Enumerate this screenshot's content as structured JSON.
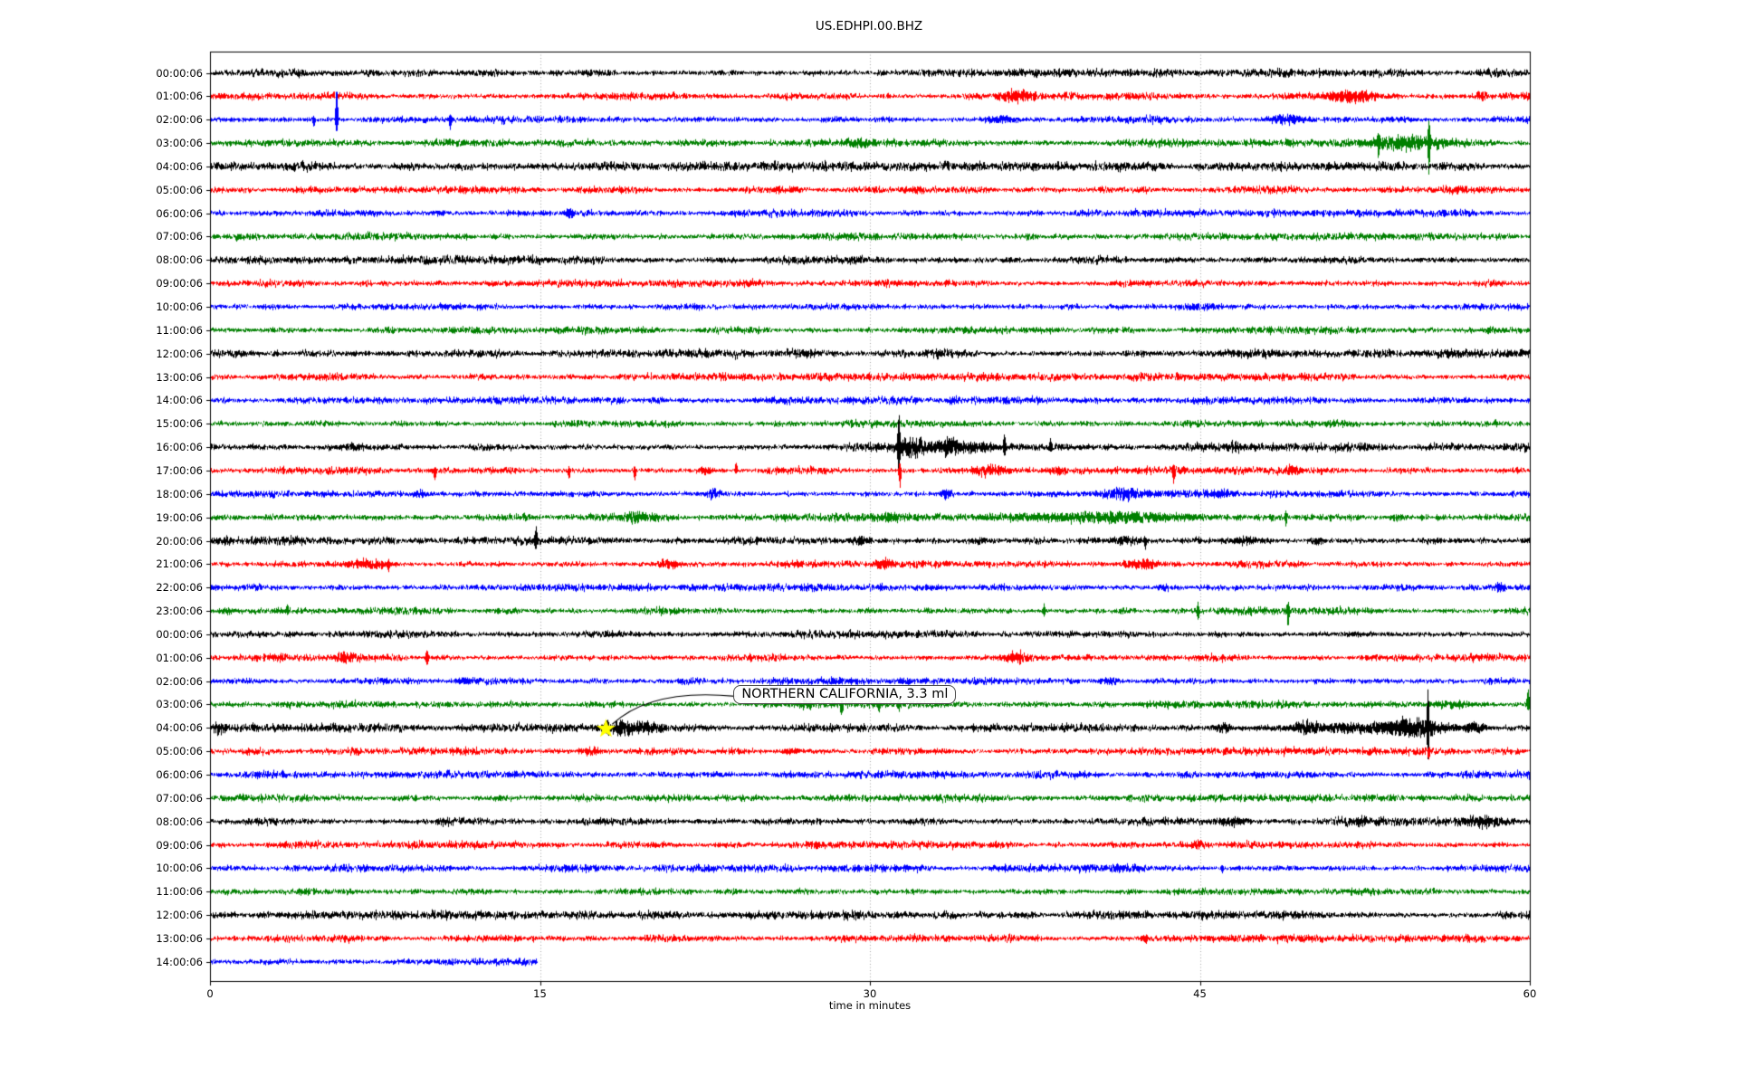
{
  "title": "US.EDHPI.00.BHZ",
  "xlabel": "time in minutes",
  "x_ticks": [
    0,
    15,
    30,
    45,
    60
  ],
  "grid_minutes": [
    15,
    30,
    45
  ],
  "annotation": {
    "text": "NORTHERN CALIFORNIA, 3.3 ml",
    "star_row": 28,
    "star_minute": 18.0,
    "box_left_minute": 23.8,
    "box_row": 27,
    "star_color": "#ffff00"
  },
  "chart_data": {
    "type": "line",
    "subtype": "seismogram-dayplot",
    "station": "US.EDHPI.00.BHZ",
    "x_range_minutes": [
      0,
      60
    ],
    "grid": "vertical-dotted",
    "noise_seed": 1337,
    "palette": [
      "#000000",
      "#ff0000",
      "#0000ff",
      "#008000"
    ],
    "rows": [
      {
        "label": "00:00:06",
        "color": "#000000",
        "amp": 3.1,
        "len": 60,
        "ev": []
      },
      {
        "label": "01:00:06",
        "color": "#ff0000",
        "amp": 2.9,
        "len": 60,
        "ev": [
          [
            "b",
            36.7,
            6,
            0.9
          ],
          [
            "b",
            51.9,
            7,
            1.6
          ],
          [
            "b",
            57.8,
            4,
            0.4
          ]
        ]
      },
      {
        "label": "02:00:06",
        "color": "#0000ff",
        "amp": 2.9,
        "len": 60,
        "ev": [
          [
            "s",
            4.7,
            2,
            8
          ],
          [
            "s",
            5.74,
            38,
            14
          ],
          [
            "s",
            10.9,
            3,
            9
          ],
          [
            "b",
            36.0,
            4,
            0.8
          ],
          [
            "b",
            48.8,
            6,
            1.0
          ]
        ]
      },
      {
        "label": "03:00:06",
        "color": "#008000",
        "amp": 2.9,
        "len": 60,
        "ev": [
          [
            "b",
            29.5,
            4,
            0.8
          ],
          [
            "s",
            53.1,
            10,
            12
          ],
          [
            "b",
            54.3,
            7,
            2.2
          ],
          [
            "s",
            55.4,
            26,
            30
          ]
        ]
      },
      {
        "label": "04:00:06",
        "color": "#000000",
        "amp": 3.4,
        "len": 60,
        "ev": []
      },
      {
        "label": "05:00:06",
        "color": "#ff0000",
        "amp": 2.9,
        "len": 60,
        "ev": [
          [
            "b",
            56.8,
            5,
            0.3
          ]
        ]
      },
      {
        "label": "06:00:06",
        "color": "#0000ff",
        "amp": 2.9,
        "len": 60,
        "ev": [
          [
            "b",
            16.3,
            5,
            0.3
          ]
        ]
      },
      {
        "label": "07:00:06",
        "color": "#008000",
        "amp": 2.9,
        "len": 60,
        "ev": []
      },
      {
        "label": "08:00:06",
        "color": "#000000",
        "amp": 3.3,
        "len": 60,
        "ev": []
      },
      {
        "label": "09:00:06",
        "color": "#ff0000",
        "amp": 2.9,
        "len": 60,
        "ev": []
      },
      {
        "label": "10:00:06",
        "color": "#0000ff",
        "amp": 2.9,
        "len": 60,
        "ev": []
      },
      {
        "label": "11:00:06",
        "color": "#008000",
        "amp": 2.9,
        "len": 60,
        "ev": []
      },
      {
        "label": "12:00:06",
        "color": "#000000",
        "amp": 3.4,
        "len": 60,
        "ev": []
      },
      {
        "label": "13:00:06",
        "color": "#ff0000",
        "amp": 2.9,
        "len": 60,
        "ev": []
      },
      {
        "label": "14:00:06",
        "color": "#0000ff",
        "amp": 2.9,
        "len": 60,
        "ev": []
      },
      {
        "label": "15:00:06",
        "color": "#008000",
        "amp": 2.9,
        "len": 60,
        "ev": []
      },
      {
        "label": "16:00:06",
        "color": "#000000",
        "amp": 3.2,
        "len": 60,
        "ev": [
          [
            "s",
            31.3,
            36,
            30
          ],
          [
            "b",
            31.9,
            10,
            1.1
          ],
          [
            "b",
            33.6,
            8,
            0.7
          ],
          [
            "b",
            34.8,
            5,
            1.5
          ],
          [
            "s",
            36.1,
            12,
            8
          ],
          [
            "s",
            38.2,
            8,
            4
          ],
          [
            "b",
            46.6,
            5,
            0.4
          ]
        ]
      },
      {
        "label": "17:00:06",
        "color": "#ff0000",
        "amp": 2.9,
        "len": 60,
        "ev": [
          [
            "s",
            10.2,
            3,
            10
          ],
          [
            "s",
            16.3,
            3,
            8
          ],
          [
            "s",
            19.3,
            3,
            10
          ],
          [
            "b",
            22.5,
            4,
            0.5
          ],
          [
            "s",
            23.9,
            9,
            3
          ],
          [
            "s",
            31.35,
            8,
            18
          ],
          [
            "b",
            35.5,
            5,
            1.2
          ],
          [
            "b",
            38.5,
            4,
            0.6
          ],
          [
            "s",
            43.8,
            4,
            12
          ],
          [
            "b",
            49.2,
            4,
            0.5
          ]
        ]
      },
      {
        "label": "18:00:06",
        "color": "#0000ff",
        "amp": 2.9,
        "len": 60,
        "ev": [
          [
            "b",
            9.5,
            4,
            0.4
          ],
          [
            "b",
            22.8,
            5,
            0.5
          ],
          [
            "b",
            33.5,
            5,
            0.4
          ],
          [
            "b",
            41.6,
            6,
            1.4
          ],
          [
            "b",
            46.0,
            4,
            0.8
          ]
        ]
      },
      {
        "label": "19:00:06",
        "color": "#008000",
        "amp": 2.9,
        "len": 60,
        "ev": [
          [
            "b",
            19.4,
            4,
            1.0
          ],
          [
            "b",
            30.8,
            4,
            0.8
          ],
          [
            "b",
            41.0,
            5,
            5.0
          ],
          [
            "s",
            48.9,
            6,
            10
          ],
          [
            "b",
            54.0,
            3,
            0.6
          ]
        ]
      },
      {
        "label": "20:00:06",
        "color": "#000000",
        "amp": 3.3,
        "len": 60,
        "ev": [
          [
            "s",
            14.8,
            13,
            9
          ],
          [
            "b",
            29.5,
            4,
            0.5
          ],
          [
            "b",
            34.9,
            4,
            0.5
          ],
          [
            "b",
            41.6,
            5,
            0.7
          ],
          [
            "s",
            42.5,
            3,
            8
          ],
          [
            "b",
            47.0,
            4,
            1.2
          ],
          [
            "b",
            50.3,
            4,
            0.4
          ]
        ]
      },
      {
        "label": "21:00:06",
        "color": "#ff0000",
        "amp": 2.9,
        "len": 60,
        "ev": [
          [
            "b",
            7.2,
            5,
            1.4
          ],
          [
            "s",
            8.1,
            2,
            7
          ],
          [
            "b",
            20.8,
            5,
            0.9
          ],
          [
            "b",
            30.6,
            4,
            0.6
          ],
          [
            "b",
            42.5,
            5,
            1.2
          ]
        ]
      },
      {
        "label": "22:00:06",
        "color": "#0000ff",
        "amp": 2.9,
        "len": 60,
        "ev": [
          [
            "b",
            43.3,
            3,
            0.4
          ],
          [
            "b",
            58.6,
            4,
            0.5
          ]
        ]
      },
      {
        "label": "23:00:06",
        "color": "#008000",
        "amp": 2.9,
        "len": 60,
        "ev": [
          [
            "b",
            0.8,
            4,
            0.6
          ],
          [
            "s",
            3.5,
            7,
            2
          ],
          [
            "s",
            37.9,
            6,
            6
          ],
          [
            "s",
            44.9,
            8,
            10
          ],
          [
            "s",
            49.0,
            8,
            18
          ]
        ]
      },
      {
        "label": "00:00:06",
        "color": "#000000",
        "amp": 3.1,
        "len": 60,
        "ev": []
      },
      {
        "label": "01:00:06",
        "color": "#ff0000",
        "amp": 2.9,
        "len": 60,
        "ev": [
          [
            "b",
            6.2,
            4,
            0.9
          ],
          [
            "s",
            9.85,
            9,
            9
          ],
          [
            "b",
            36.7,
            6,
            0.8
          ]
        ]
      },
      {
        "label": "02:00:06",
        "color": "#0000ff",
        "amp": 2.9,
        "len": 60,
        "ev": [
          [
            "b",
            11.6,
            3,
            0.4
          ],
          [
            "b",
            40.9,
            3,
            0.6
          ]
        ]
      },
      {
        "label": "03:00:06",
        "color": "#008000",
        "amp": 2.9,
        "len": 60,
        "ev": [
          [
            "b",
            27.0,
            4,
            0.5
          ],
          [
            "s",
            28.7,
            3,
            11
          ],
          [
            "s",
            30.4,
            3,
            8
          ],
          [
            "s",
            31.3,
            2,
            6
          ],
          [
            "b",
            56.5,
            4,
            1.5
          ],
          [
            "s",
            59.9,
            18,
            6
          ]
        ]
      },
      {
        "label": "04:00:06",
        "color": "#000000",
        "amp": 3.2,
        "len": 60,
        "ev": [
          [
            "b",
            0.4,
            6,
            0.3
          ],
          [
            "s",
            18.05,
            6,
            6
          ],
          [
            "b",
            18.7,
            7,
            1.0
          ],
          [
            "b",
            19.9,
            5,
            0.8
          ],
          [
            "b",
            46.0,
            5,
            0.5
          ],
          [
            "b",
            49.8,
            6,
            0.6
          ],
          [
            "b",
            52.0,
            4,
            6.0
          ],
          [
            "b",
            54.6,
            9,
            1.6
          ],
          [
            "s",
            55.35,
            36,
            28
          ],
          [
            "b",
            57.5,
            5,
            0.8
          ]
        ]
      },
      {
        "label": "05:00:06",
        "color": "#ff0000",
        "amp": 2.9,
        "len": 60,
        "ev": [
          [
            "b",
            17.3,
            4,
            0.5
          ],
          [
            "b",
            26.3,
            3,
            0.4
          ],
          [
            "s",
            55.4,
            3,
            8
          ]
        ]
      },
      {
        "label": "06:00:06",
        "color": "#0000ff",
        "amp": 2.9,
        "len": 60,
        "ev": []
      },
      {
        "label": "07:00:06",
        "color": "#008000",
        "amp": 2.9,
        "len": 60,
        "ev": []
      },
      {
        "label": "08:00:06",
        "color": "#000000",
        "amp": 3.3,
        "len": 60,
        "ev": [
          [
            "b",
            46.5,
            3,
            0.8
          ],
          [
            "b",
            52.3,
            4,
            0.5
          ],
          [
            "b",
            53.2,
            4,
            0.3
          ],
          [
            "b",
            58.0,
            4,
            1.5
          ]
        ]
      },
      {
        "label": "09:00:06",
        "color": "#ff0000",
        "amp": 2.9,
        "len": 60,
        "ev": [
          [
            "b",
            44.9,
            4,
            0.4
          ]
        ]
      },
      {
        "label": "10:00:06",
        "color": "#0000ff",
        "amp": 2.9,
        "len": 60,
        "ev": [
          [
            "b",
            41.2,
            3,
            0.8
          ],
          [
            "s",
            46.0,
            2,
            5
          ]
        ]
      },
      {
        "label": "11:00:06",
        "color": "#008000",
        "amp": 2.9,
        "len": 60,
        "ev": []
      },
      {
        "label": "12:00:06",
        "color": "#000000",
        "amp": 3.2,
        "len": 60,
        "ev": []
      },
      {
        "label": "13:00:06",
        "color": "#ff0000",
        "amp": 2.9,
        "len": 60,
        "ev": [
          [
            "b",
            42.5,
            3,
            0.3
          ]
        ]
      },
      {
        "label": "14:00:06",
        "color": "#0000ff",
        "amp": 2.9,
        "len": 14.9,
        "ev": []
      }
    ]
  }
}
